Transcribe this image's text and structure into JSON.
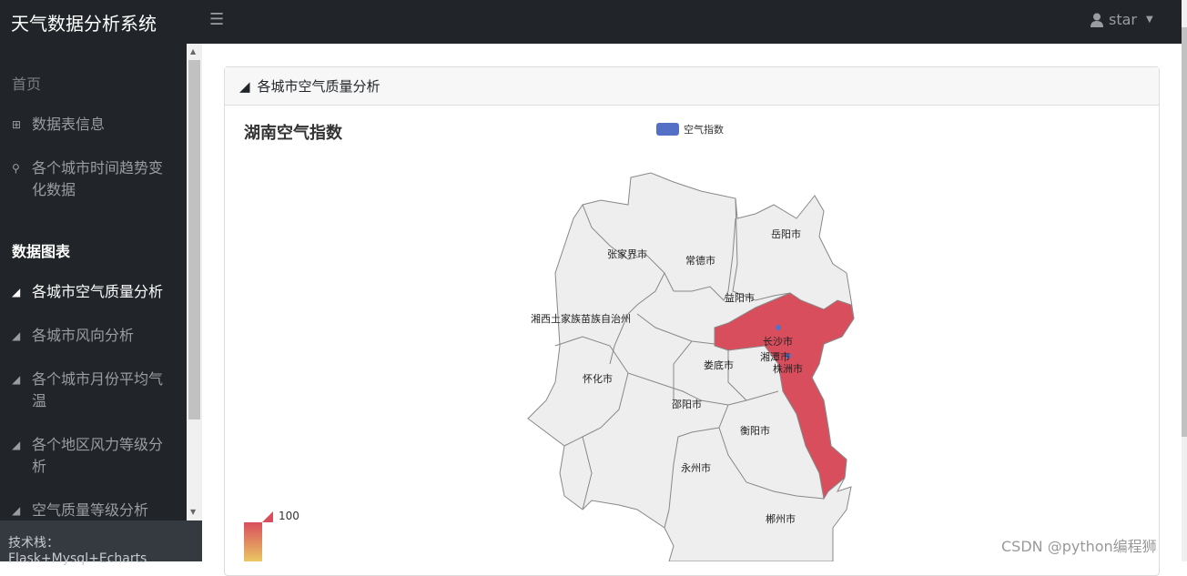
{
  "navbar": {
    "brand": "天气数据分析系统",
    "toggle_icon": "menu-icon",
    "user": "star"
  },
  "sidebar": {
    "section1": "首页",
    "items1": [
      {
        "label": "数据表信息",
        "icon": "table-icon"
      },
      {
        "label": "各个城市时间趋势变化数据",
        "icon": "search-icon"
      }
    ],
    "section2": "数据图表",
    "items2": [
      {
        "label": "各城市空气质量分析",
        "icon": "area-chart-icon",
        "active": true
      },
      {
        "label": "各城市风向分析",
        "icon": "area-chart-icon"
      },
      {
        "label": "各个城市月份平均气温",
        "icon": "area-chart-icon"
      },
      {
        "label": "各个地区风力等级分析",
        "icon": "area-chart-icon"
      },
      {
        "label": "空气质量等级分析",
        "icon": "area-chart-icon"
      }
    ],
    "footer": "技术栈：Flask+Mysql+Echarts"
  },
  "card": {
    "header": "各城市空气质量分析"
  },
  "chart_data": {
    "type": "map",
    "title": "湖南空气指数",
    "legend": [
      "空气指数"
    ],
    "visual_map": {
      "max": 100,
      "colors": [
        "#eac763",
        "#d94e5d"
      ]
    },
    "regions": [
      "岳阳市",
      "张家界市",
      "常德市",
      "益阳市",
      "湘西土家族苗族自治州",
      "长沙市",
      "湘潭市",
      "株洲市",
      "娄底市",
      "怀化市",
      "邵阳市",
      "衡阳市",
      "永州市",
      "郴州市"
    ],
    "highlighted": [
      {
        "name": "长沙市",
        "value": 100
      },
      {
        "name": "株洲市",
        "value": 100
      }
    ],
    "default_color": "#eeeeee",
    "highlight_color": "#d94e5d",
    "point_color": "#5470c6"
  },
  "watermark": "CSDN @python编程狮"
}
